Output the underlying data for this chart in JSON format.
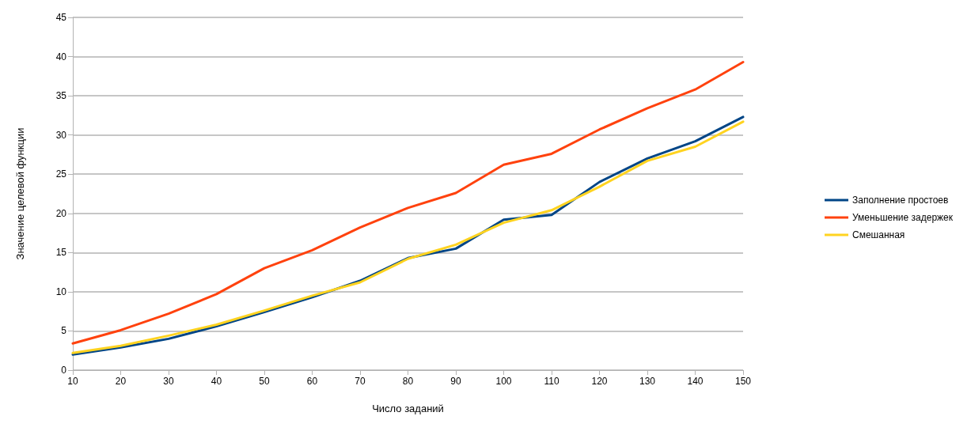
{
  "chart_data": {
    "type": "line",
    "xlabel": "Число заданий",
    "ylabel": "Значение целевой функции",
    "x": [
      10,
      20,
      30,
      40,
      50,
      60,
      70,
      80,
      90,
      100,
      110,
      120,
      130,
      140,
      150
    ],
    "xlim": [
      10,
      150
    ],
    "xticks": [
      10,
      20,
      30,
      40,
      50,
      60,
      70,
      80,
      90,
      100,
      110,
      120,
      130,
      140,
      150
    ],
    "ylim": [
      0,
      45
    ],
    "yticks": [
      0,
      5,
      10,
      15,
      20,
      25,
      30,
      35,
      40,
      45
    ],
    "grid": "y",
    "legend": "right",
    "marker": "none",
    "line_style": "solid",
    "series": [
      {
        "name": "Заполнение простоев",
        "color": "#004586",
        "values": [
          2.0,
          2.9,
          4.0,
          5.6,
          7.4,
          9.3,
          11.4,
          14.3,
          15.5,
          19.2,
          19.8,
          24.0,
          27.0,
          29.2,
          32.3
        ]
      },
      {
        "name": "Уменьшение задержек",
        "color": "#ff420e",
        "values": [
          3.4,
          5.1,
          7.2,
          9.7,
          13.0,
          15.3,
          18.2,
          20.7,
          22.6,
          26.2,
          27.6,
          30.7,
          33.4,
          35.8,
          39.3
        ]
      },
      {
        "name": "Смешанная",
        "color": "#ffd320",
        "values": [
          2.2,
          3.1,
          4.4,
          5.8,
          7.6,
          9.5,
          11.2,
          14.2,
          16.0,
          18.8,
          20.4,
          23.4,
          26.7,
          28.5,
          31.7
        ]
      }
    ]
  }
}
